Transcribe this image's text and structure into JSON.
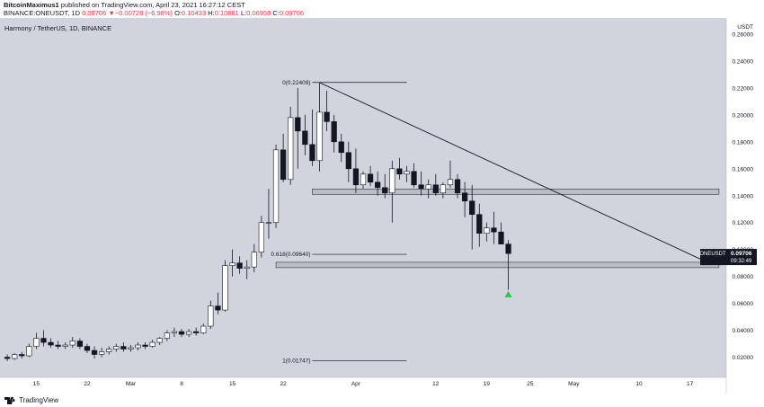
{
  "header": {
    "author": "BitcoinMaximus1",
    "published_text": "published on TradingView.com, April 23, 2021 16:27:12 CEST",
    "symbol_line": "BINANCE:ONEUSDT, 1D",
    "last": "0.09706",
    "change": "▼−0.00728 (−6.98%)",
    "o_label": "O:",
    "o_value": "0.10433",
    "h_label": "H:",
    "h_value": "0.10661",
    "l_label": "L:",
    "l_value": "0.06959",
    "c_label": "C:",
    "c_value": "0.09706"
  },
  "footer": {
    "brand": "TradingView"
  },
  "colors": {
    "background": "#d1d4dc",
    "candle_up_fill": "#ffffff",
    "candle_down_fill": "#131722",
    "outline": "#131722",
    "zone_fill": "#b2b5be",
    "arrow": "#26c945",
    "price_tag": "#131722"
  },
  "chart_data": {
    "type": "candlestick",
    "title": "Harmony / TetherUS, 1D, BINANCE",
    "currency_label": "USDT",
    "y_ticks": [
      "0.02000",
      "0.04000",
      "0.06000",
      "0.08000",
      "0.10000",
      "0.12000",
      "0.14000",
      "0.16000",
      "0.18000",
      "0.20000",
      "0.22000",
      "0.24000",
      "0.26000"
    ],
    "ylim": [
      0.005,
      0.272
    ],
    "x_ticks": [
      {
        "day": 4,
        "label": "15"
      },
      {
        "day": 11,
        "label": "22"
      },
      {
        "day": 17,
        "label": "Mar"
      },
      {
        "day": 24,
        "label": "8"
      },
      {
        "day": 31,
        "label": "15"
      },
      {
        "day": 38,
        "label": "22"
      },
      {
        "day": 48,
        "label": "Apr"
      },
      {
        "day": 59,
        "label": "12"
      },
      {
        "day": 66,
        "label": "19"
      },
      {
        "day": 72,
        "label": "25"
      },
      {
        "day": 78,
        "label": "May"
      },
      {
        "day": 87,
        "label": "10"
      },
      {
        "day": 94,
        "label": "17"
      }
    ],
    "xlim": [
      -1,
      99
    ],
    "candles": [
      [
        0.02,
        0.022,
        0.017,
        0.019
      ],
      [
        0.019,
        0.023,
        0.018,
        0.022
      ],
      [
        0.022,
        0.024,
        0.019,
        0.021
      ],
      [
        0.021,
        0.03,
        0.02,
        0.028
      ],
      [
        0.028,
        0.038,
        0.026,
        0.034
      ],
      [
        0.034,
        0.04,
        0.028,
        0.031
      ],
      [
        0.031,
        0.034,
        0.027,
        0.029
      ],
      [
        0.029,
        0.032,
        0.026,
        0.028
      ],
      [
        0.028,
        0.031,
        0.026,
        0.029
      ],
      [
        0.029,
        0.035,
        0.027,
        0.032
      ],
      [
        0.032,
        0.034,
        0.026,
        0.028
      ],
      [
        0.028,
        0.03,
        0.023,
        0.025
      ],
      [
        0.025,
        0.028,
        0.019,
        0.022
      ],
      [
        0.022,
        0.027,
        0.02,
        0.024
      ],
      [
        0.024,
        0.028,
        0.022,
        0.026
      ],
      [
        0.026,
        0.03,
        0.024,
        0.028
      ],
      [
        0.028,
        0.031,
        0.024,
        0.026
      ],
      [
        0.026,
        0.029,
        0.024,
        0.027
      ],
      [
        0.027,
        0.031,
        0.025,
        0.029
      ],
      [
        0.029,
        0.031,
        0.026,
        0.028
      ],
      [
        0.028,
        0.033,
        0.027,
        0.031
      ],
      [
        0.031,
        0.035,
        0.029,
        0.034
      ],
      [
        0.034,
        0.04,
        0.032,
        0.038
      ],
      [
        0.038,
        0.042,
        0.035,
        0.039
      ],
      [
        0.039,
        0.041,
        0.035,
        0.037
      ],
      [
        0.037,
        0.041,
        0.035,
        0.039
      ],
      [
        0.039,
        0.042,
        0.036,
        0.038
      ],
      [
        0.038,
        0.045,
        0.037,
        0.043
      ],
      [
        0.043,
        0.062,
        0.041,
        0.058
      ],
      [
        0.058,
        0.068,
        0.052,
        0.055
      ],
      [
        0.055,
        0.092,
        0.054,
        0.088
      ],
      [
        0.088,
        0.1,
        0.08,
        0.09
      ],
      [
        0.09,
        0.095,
        0.082,
        0.086
      ],
      [
        0.086,
        0.092,
        0.078,
        0.087
      ],
      [
        0.087,
        0.104,
        0.083,
        0.098
      ],
      [
        0.098,
        0.125,
        0.094,
        0.12
      ],
      [
        0.12,
        0.145,
        0.108,
        0.12
      ],
      [
        0.12,
        0.178,
        0.116,
        0.174
      ],
      [
        0.174,
        0.186,
        0.15,
        0.152
      ],
      [
        0.152,
        0.206,
        0.148,
        0.198
      ],
      [
        0.198,
        0.22,
        0.16,
        0.188
      ],
      [
        0.188,
        0.2,
        0.17,
        0.178
      ],
      [
        0.178,
        0.204,
        0.162,
        0.166
      ],
      [
        0.166,
        0.224,
        0.158,
        0.202
      ],
      [
        0.202,
        0.218,
        0.188,
        0.195
      ],
      [
        0.195,
        0.2,
        0.172,
        0.18
      ],
      [
        0.18,
        0.186,
        0.165,
        0.172
      ],
      [
        0.172,
        0.18,
        0.15,
        0.16
      ],
      [
        0.16,
        0.175,
        0.142,
        0.148
      ],
      [
        0.148,
        0.158,
        0.145,
        0.156
      ],
      [
        0.156,
        0.162,
        0.147,
        0.15
      ],
      [
        0.15,
        0.158,
        0.14,
        0.146
      ],
      [
        0.146,
        0.156,
        0.138,
        0.142
      ],
      [
        0.142,
        0.166,
        0.12,
        0.16
      ],
      [
        0.16,
        0.168,
        0.152,
        0.156
      ],
      [
        0.156,
        0.162,
        0.15,
        0.158
      ],
      [
        0.158,
        0.164,
        0.146,
        0.148
      ],
      [
        0.148,
        0.158,
        0.14,
        0.145
      ],
      [
        0.145,
        0.152,
        0.138,
        0.148
      ],
      [
        0.148,
        0.156,
        0.14,
        0.142
      ],
      [
        0.142,
        0.15,
        0.138,
        0.148
      ],
      [
        0.148,
        0.166,
        0.146,
        0.152
      ],
      [
        0.152,
        0.156,
        0.138,
        0.142
      ],
      [
        0.142,
        0.15,
        0.124,
        0.136
      ],
      [
        0.136,
        0.148,
        0.1,
        0.126
      ],
      [
        0.126,
        0.134,
        0.102,
        0.112
      ],
      [
        0.112,
        0.12,
        0.106,
        0.116
      ],
      [
        0.116,
        0.128,
        0.104,
        0.113
      ],
      [
        0.113,
        0.12,
        0.104,
        0.104
      ],
      [
        0.104,
        0.107,
        0.07,
        0.097
      ]
    ],
    "horizontal_zones": [
      {
        "from_day": 42,
        "to_day": 98,
        "low": 0.141,
        "high": 0.145
      },
      {
        "from_day": 37,
        "to_day": 98,
        "low": 0.0865,
        "high": 0.0905
      }
    ],
    "trendline": {
      "from": {
        "day": 43,
        "price": 0.224
      },
      "to": {
        "day": 97,
        "price": 0.089
      }
    },
    "fib_levels": [
      {
        "label": "0(0.22409)",
        "price": 0.22409,
        "line_from_day": 43,
        "line_to_day": 55
      },
      {
        "label": "0.618(0.09640)",
        "price": 0.0964,
        "line_from_day": 43,
        "line_to_day": 55
      },
      {
        "label": "1(0.01747)",
        "price": 0.01747,
        "line_from_day": 43,
        "line_to_day": 55
      }
    ],
    "arrow": {
      "day": 69,
      "price": 0.0665
    },
    "price_tag": {
      "symbol": "ONEUSDT",
      "price": 0.09706,
      "countdown": "09:32:49"
    }
  }
}
